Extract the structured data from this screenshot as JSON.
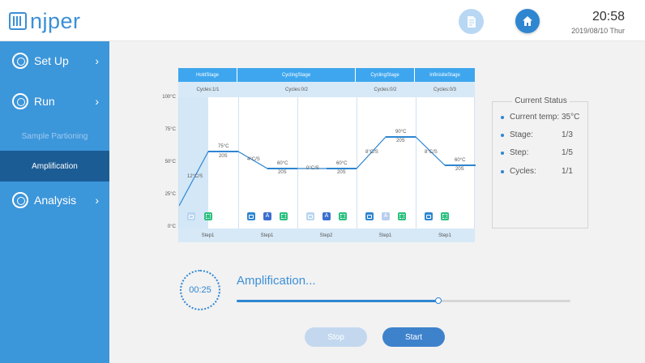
{
  "header": {
    "logo_text": "njper",
    "time": "20:58",
    "date": "2019/08/10  Thur",
    "doc_icon": "document-icon",
    "home_icon": "home-icon"
  },
  "sidebar": {
    "items": [
      {
        "label": "Set Up",
        "icon": "setup-icon"
      },
      {
        "label": "Run",
        "icon": "run-icon"
      },
      {
        "label": "Analysis",
        "icon": "analysis-icon"
      }
    ],
    "subitems": [
      {
        "label": "Sample Partioning"
      },
      {
        "label": "Amplification"
      }
    ]
  },
  "chart": {
    "y_ticks": [
      "100°C",
      "75°C",
      "50°C",
      "25°C",
      "0°C"
    ],
    "stages": [
      "HoldStage",
      "CyclingStage",
      "CyclingStage",
      "InfinisiteStage"
    ],
    "cycles": [
      "Cycles:1/1",
      "Cycles:0/2",
      "Cycles:0/2",
      "Cycles:0/3"
    ],
    "steps": [
      "Step1",
      "Step1",
      "Step2",
      "Step1",
      "Step1"
    ],
    "ramp_rates": [
      "12°C/S",
      "4°C/S",
      "0°C/S",
      "8°C/S",
      "8°C/S"
    ],
    "step_temps": [
      "75°C",
      "60°C",
      "60°C",
      "90°C",
      "60°C"
    ],
    "step_times": [
      "20S",
      "20S",
      "20S",
      "20S",
      "20S"
    ],
    "a_label": "A",
    "colors": {
      "accent": "#3ea6ee",
      "line": "#2e86d1",
      "header_bg": "#d7e9f7"
    }
  },
  "status": {
    "title": "Current Status",
    "rows": [
      {
        "key": "Current temp:",
        "value": "35°C"
      },
      {
        "key": "Stage:",
        "value": "1/3"
      },
      {
        "key": "Step:",
        "value": "1/5"
      },
      {
        "key": "Cycles:",
        "value": "1/1"
      }
    ]
  },
  "progress": {
    "timer": "00:25",
    "label": "Amplification...",
    "fraction": 0.605
  },
  "buttons": {
    "stop": "Stop",
    "start": "Start"
  }
}
